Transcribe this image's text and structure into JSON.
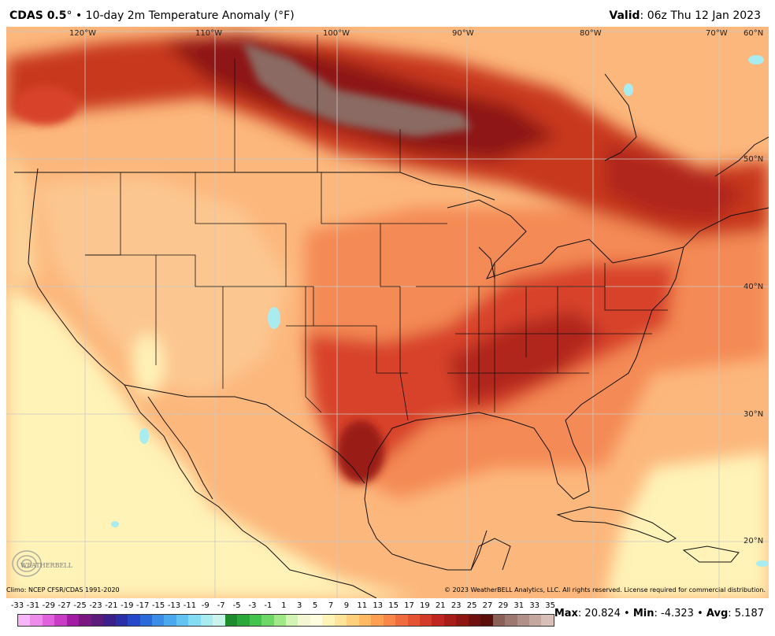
{
  "header": {
    "model": "CDAS 0.5",
    "degree_mark": "°",
    "bullet": " • ",
    "description": "10-day 2m Temperature Anomaly (°F)",
    "valid_label": "Valid",
    "valid_time": ": 06z Thu 12 Jan 2023"
  },
  "map": {
    "longitude_labels": [
      "120°W",
      "110°W",
      "100°W",
      "90°W",
      "80°W",
      "70°W"
    ],
    "latitude_labels": [
      "60°N",
      "50°N",
      "40°N",
      "30°N",
      "20°N"
    ],
    "logo_text": "WEATHERBELL"
  },
  "footer": {
    "climo": "Climo: NCEP CFSR/CDAS 1991-2020",
    "copyright": "© 2023 WeatherBELL Analytics, LLC. All rights reserved. License required for commercial distribution."
  },
  "scale": {
    "ticks": [
      "-33",
      "-31",
      "-29",
      "-27",
      "-25",
      "-23",
      "-21",
      "-19",
      "-17",
      "-15",
      "-13",
      "-11",
      "-9",
      "-7",
      "-5",
      "-3",
      "-1",
      "1",
      "3",
      "5",
      "7",
      "9",
      "11",
      "13",
      "15",
      "17",
      "19",
      "21",
      "23",
      "25",
      "27",
      "29",
      "31",
      "33",
      "35"
    ],
    "colors": [
      "#f7b6f5",
      "#ee8de9",
      "#e062dc",
      "#c93cc5",
      "#a21ca3",
      "#7b1680",
      "#5c1a7a",
      "#3b1f8a",
      "#2a2fa8",
      "#2448c8",
      "#2a6ad8",
      "#3a8ce6",
      "#4aa8ef",
      "#63c4f2",
      "#84dcf2",
      "#a8ecf0",
      "#c8f4ec",
      "#1e8c2c",
      "#2aa838",
      "#44c44c",
      "#6ed866",
      "#a0e888",
      "#d2f4b4",
      "#f4f8d2",
      "#fffde0",
      "#fff4b8",
      "#ffe398",
      "#ffd07c",
      "#ffb864",
      "#fca154",
      "#f7874a",
      "#ef6c3e",
      "#e45332",
      "#d43a28",
      "#c0261e",
      "#a81c18",
      "#8e1512",
      "#6f100e",
      "#5a0e0c",
      "#886058",
      "#9c7870",
      "#b09088",
      "#c4a8a0",
      "#d8c0b8"
    ]
  },
  "stats": {
    "max_label": "Max",
    "max_value": ": 20.824",
    "min_label": "Min",
    "min_value": ": -4.323",
    "avg_label": "Avg",
    "avg_value": ": 5.187",
    "sep": " • "
  },
  "colors": {
    "ocean_pale": "#fff3b8",
    "anomaly_light": "#fcb77c",
    "anomaly_mid": "#f48a54",
    "anomaly_strong": "#d8432c",
    "anomaly_max": "#9a1a12",
    "cold_cyan": "#a8ecf0",
    "brown_extreme": "#8a6a62"
  }
}
